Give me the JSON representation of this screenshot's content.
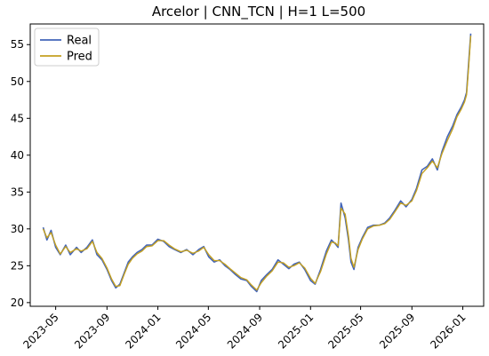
{
  "chart_data": {
    "type": "line",
    "title": "Arcelor | CNN_TCN | H=1 L=500",
    "xlabel": "",
    "ylabel": "",
    "x_start": "2023-04-01",
    "x_end": "2026-01-20",
    "xlim": [
      "2023-03-01",
      "2026-02-20"
    ],
    "ylim": [
      19.5,
      57.8
    ],
    "grid": false,
    "legend_position": "top-left",
    "x_ticks": [
      "2023-05",
      "2023-09",
      "2024-01",
      "2024-05",
      "2024-09",
      "2025-01",
      "2025-05",
      "2025-09",
      "2026-01"
    ],
    "y_ticks": [
      20,
      25,
      30,
      35,
      40,
      45,
      50,
      55
    ],
    "series": [
      {
        "name": "Real",
        "color": "#4264b9",
        "x": [
          "2023-04-01",
          "2023-04-10",
          "2023-04-20",
          "2023-05-01",
          "2023-05-12",
          "2023-05-25",
          "2023-06-05",
          "2023-06-20",
          "2023-07-01",
          "2023-07-15",
          "2023-07-28",
          "2023-08-08",
          "2023-08-20",
          "2023-09-01",
          "2023-09-12",
          "2023-09-22",
          "2023-10-02",
          "2023-10-12",
          "2023-10-22",
          "2023-11-01",
          "2023-11-12",
          "2023-11-24",
          "2023-12-05",
          "2023-12-18",
          "2024-01-01",
          "2024-01-15",
          "2024-01-28",
          "2024-02-10",
          "2024-02-25",
          "2024-03-10",
          "2024-03-25",
          "2024-04-08",
          "2024-04-20",
          "2024-05-02",
          "2024-05-15",
          "2024-05-28",
          "2024-06-10",
          "2024-06-22",
          "2024-07-05",
          "2024-07-18",
          "2024-08-01",
          "2024-08-12",
          "2024-08-25",
          "2024-09-05",
          "2024-09-18",
          "2024-10-01",
          "2024-10-15",
          "2024-10-28",
          "2024-11-10",
          "2024-11-22",
          "2024-12-05",
          "2024-12-18",
          "2025-01-01",
          "2025-01-12",
          "2025-01-25",
          "2025-02-08",
          "2025-02-20",
          "2025-03-01",
          "2025-03-08",
          "2025-03-15",
          "2025-03-25",
          "2025-04-02",
          "2025-04-08",
          "2025-04-15",
          "2025-04-25",
          "2025-05-05",
          "2025-05-18",
          "2025-06-01",
          "2025-06-15",
          "2025-06-28",
          "2025-07-10",
          "2025-07-22",
          "2025-08-05",
          "2025-08-18",
          "2025-09-01",
          "2025-09-12",
          "2025-09-25",
          "2025-10-08",
          "2025-10-20",
          "2025-11-01",
          "2025-11-12",
          "2025-11-25",
          "2025-12-08",
          "2025-12-18",
          "2025-12-28",
          "2026-01-05",
          "2026-01-10",
          "2026-01-15",
          "2026-01-20"
        ],
        "values": [
          30.2,
          28.5,
          29.8,
          27.5,
          26.5,
          27.8,
          26.5,
          27.5,
          26.8,
          27.5,
          28.5,
          26.5,
          25.8,
          24.5,
          23.0,
          22.0,
          22.5,
          24.0,
          25.5,
          26.2,
          26.8,
          27.2,
          27.8,
          27.8,
          28.6,
          28.3,
          27.6,
          27.2,
          26.8,
          27.2,
          26.5,
          27.2,
          27.6,
          26.2,
          25.5,
          25.8,
          25.0,
          24.5,
          23.8,
          23.2,
          23.0,
          22.2,
          21.5,
          23.0,
          23.8,
          24.5,
          25.8,
          25.2,
          24.6,
          25.2,
          25.5,
          24.5,
          23.0,
          22.5,
          24.5,
          27.0,
          28.5,
          28.0,
          27.5,
          33.5,
          31.5,
          28.5,
          25.5,
          24.5,
          27.5,
          28.8,
          30.2,
          30.5,
          30.5,
          30.8,
          31.5,
          32.5,
          33.8,
          33.0,
          34.0,
          35.5,
          38.0,
          38.5,
          39.5,
          38.0,
          40.5,
          42.5,
          44.0,
          45.5,
          46.5,
          47.5,
          48.5,
          52.5,
          56.5
        ]
      },
      {
        "name": "Pred",
        "color": "#c4a020",
        "x": [
          "2023-04-01",
          "2023-04-10",
          "2023-04-20",
          "2023-05-01",
          "2023-05-12",
          "2023-05-25",
          "2023-06-05",
          "2023-06-20",
          "2023-07-01",
          "2023-07-15",
          "2023-07-28",
          "2023-08-08",
          "2023-08-20",
          "2023-09-01",
          "2023-09-12",
          "2023-09-22",
          "2023-10-02",
          "2023-10-12",
          "2023-10-22",
          "2023-11-01",
          "2023-11-12",
          "2023-11-24",
          "2023-12-05",
          "2023-12-18",
          "2024-01-01",
          "2024-01-15",
          "2024-01-28",
          "2024-02-10",
          "2024-02-25",
          "2024-03-10",
          "2024-03-25",
          "2024-04-08",
          "2024-04-20",
          "2024-05-02",
          "2024-05-15",
          "2024-05-28",
          "2024-06-10",
          "2024-06-22",
          "2024-07-05",
          "2024-07-18",
          "2024-08-01",
          "2024-08-12",
          "2024-08-25",
          "2024-09-05",
          "2024-09-18",
          "2024-10-01",
          "2024-10-15",
          "2024-10-28",
          "2024-11-10",
          "2024-11-22",
          "2024-12-05",
          "2024-12-18",
          "2025-01-01",
          "2025-01-12",
          "2025-01-25",
          "2025-02-08",
          "2025-02-20",
          "2025-03-01",
          "2025-03-08",
          "2025-03-15",
          "2025-03-25",
          "2025-04-02",
          "2025-04-08",
          "2025-04-15",
          "2025-04-25",
          "2025-05-05",
          "2025-05-18",
          "2025-06-01",
          "2025-06-15",
          "2025-06-28",
          "2025-07-10",
          "2025-07-22",
          "2025-08-05",
          "2025-08-18",
          "2025-09-01",
          "2025-09-12",
          "2025-09-25",
          "2025-10-08",
          "2025-10-20",
          "2025-11-01",
          "2025-11-12",
          "2025-11-25",
          "2025-12-08",
          "2025-12-18",
          "2025-12-28",
          "2026-01-05",
          "2026-01-10",
          "2026-01-15",
          "2026-01-20"
        ],
        "values": [
          30.0,
          28.8,
          29.5,
          27.8,
          26.6,
          27.6,
          26.8,
          27.3,
          27.0,
          27.3,
          28.3,
          26.8,
          26.0,
          24.7,
          23.2,
          22.2,
          22.3,
          23.8,
          25.2,
          26.0,
          26.6,
          27.0,
          27.6,
          27.7,
          28.4,
          28.4,
          27.8,
          27.3,
          26.9,
          27.1,
          26.7,
          27.0,
          27.5,
          26.5,
          25.7,
          25.7,
          25.2,
          24.6,
          24.0,
          23.4,
          23.1,
          22.4,
          21.7,
          22.7,
          23.6,
          24.3,
          25.5,
          25.4,
          24.8,
          25.0,
          25.4,
          24.7,
          23.3,
          22.6,
          24.2,
          26.6,
          28.2,
          28.1,
          27.7,
          32.8,
          32.0,
          29.0,
          26.0,
          24.8,
          27.2,
          28.6,
          30.0,
          30.4,
          30.5,
          30.7,
          31.3,
          32.3,
          33.5,
          33.2,
          33.8,
          35.2,
          37.5,
          38.3,
          39.2,
          38.3,
          40.2,
          42.0,
          43.6,
          45.2,
          46.2,
          47.2,
          48.2,
          52.0,
          56.2
        ]
      }
    ]
  }
}
